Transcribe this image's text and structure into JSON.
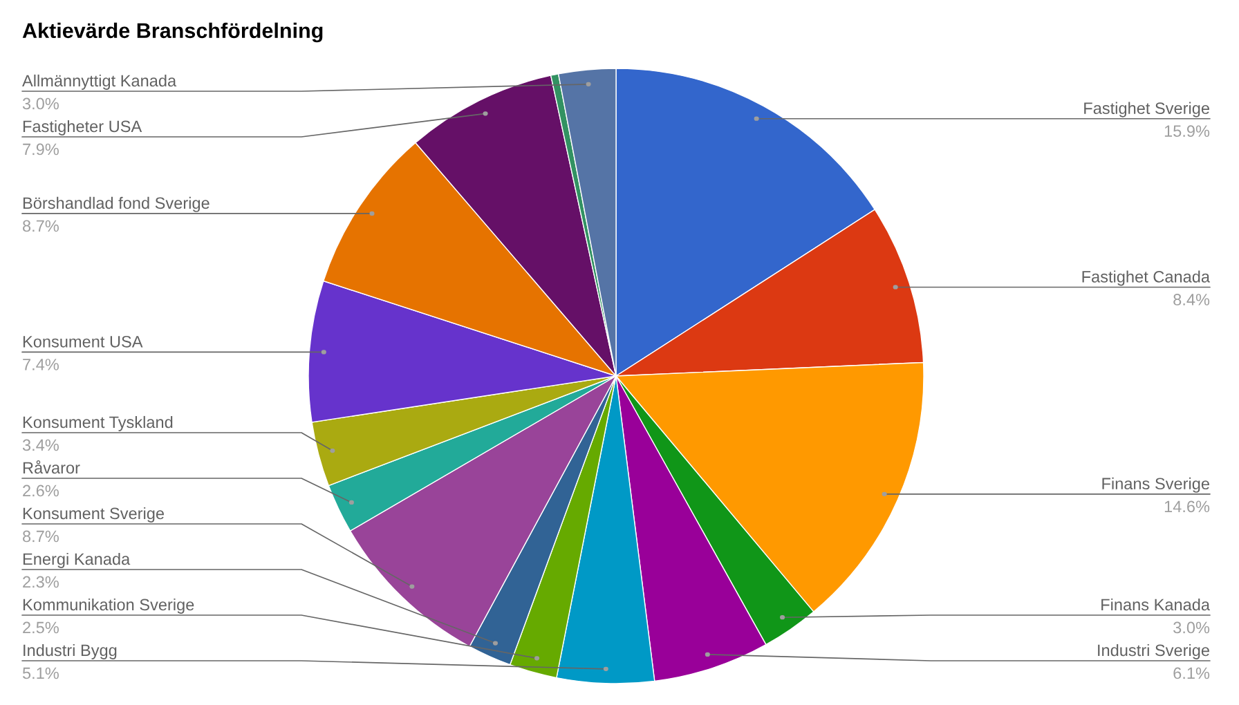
{
  "chart_data": {
    "type": "pie",
    "title": "Aktievärde Branschfördelning",
    "categories": [
      "Fastighet Sverige",
      "Fastighet Canada",
      "Finans Sverige",
      "Finans Kanada",
      "Industri Sverige",
      "Industri Bygg",
      "Kommunikation Sverige",
      "Energi Kanada",
      "Konsument Sverige",
      "Råvaror",
      "Konsument Tyskland",
      "Konsument USA",
      "Börshandlad fond Sverige",
      "Fastigheter USA",
      null,
      "Allmännyttigt Kanada"
    ],
    "values": [
      15.9,
      8.4,
      14.6,
      3.0,
      6.1,
      5.1,
      2.5,
      2.3,
      8.7,
      2.6,
      3.4,
      7.4,
      8.7,
      7.9,
      0.4,
      3.0
    ],
    "colors": [
      "#3366cc",
      "#dc3912",
      "#ff9900",
      "#109618",
      "#990099",
      "#0099c6",
      "#66aa00",
      "#316395",
      "#994499",
      "#22aa99",
      "#aaaa11",
      "#6633cc",
      "#e67300",
      "#651067",
      "#329262",
      "#5574a6"
    ],
    "value_labels": [
      "15.9%",
      "8.4%",
      "14.6%",
      "3.0%",
      "6.1%",
      "5.1%",
      "2.5%",
      "2.3%",
      "8.7%",
      "2.6%",
      "3.4%",
      "7.4%",
      "8.7%",
      "7.9%",
      null,
      "3.0%"
    ]
  }
}
